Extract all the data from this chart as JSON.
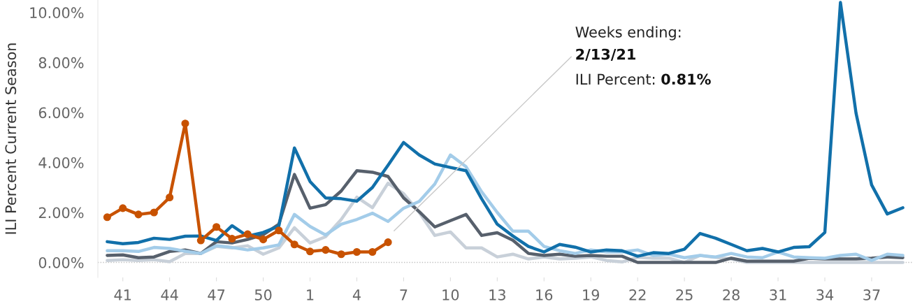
{
  "chart_data": {
    "type": "line",
    "ylabel": "ILI Percent Current Season",
    "categories": [
      null,
      "41",
      null,
      null,
      "44",
      null,
      null,
      "47",
      null,
      null,
      "50",
      null,
      null,
      "1",
      null,
      null,
      "4",
      null,
      null,
      "7",
      null,
      null,
      "10",
      null,
      null,
      "13",
      null,
      null,
      "16",
      null,
      null,
      "19",
      null,
      null,
      "22",
      null,
      null,
      "25",
      null,
      null,
      "28",
      null,
      null,
      "31",
      null,
      null,
      "34",
      null,
      null,
      "37",
      null,
      null
    ],
    "series": [
      {
        "color": "#c8d0d9",
        "values": [
          0.08,
          0.11,
          0.08,
          0.11,
          0.03,
          0.36,
          0.36,
          0.64,
          0.58,
          0.67,
          0.33,
          0.58,
          1.39,
          0.78,
          1.03,
          1.72,
          2.61,
          2.19,
          3.17,
          2.75,
          2.0,
          1.08,
          1.22,
          0.58,
          0.58,
          0.22,
          0.33,
          0.14,
          0.22,
          0.14,
          0.17,
          0.22,
          0.08,
          0.02,
          0.2,
          0.17,
          0.17,
          0,
          0.28,
          0.2,
          0.14,
          0,
          0,
          0,
          0,
          0,
          0,
          0,
          0,
          0,
          0,
          0
        ]
      },
      {
        "color": "#57606c",
        "values": [
          0.28,
          0.3,
          0.19,
          0.22,
          0.44,
          0.5,
          0.36,
          0.83,
          0.78,
          0.92,
          1.11,
          1.53,
          3.52,
          2.17,
          2.31,
          2.86,
          3.67,
          3.61,
          3.44,
          2.58,
          2.03,
          1.42,
          1.67,
          1.92,
          1.08,
          1.19,
          0.89,
          0.36,
          0.28,
          0.33,
          0.25,
          0.28,
          0.25,
          0.25,
          0,
          0,
          0,
          0,
          0,
          0,
          0.17,
          0.05,
          0.05,
          0.05,
          0.05,
          0.17,
          0.14,
          0.14,
          0.14,
          0.17,
          0.22,
          0.19
        ]
      },
      {
        "color": "#a3cce9",
        "values": [
          0.47,
          0.47,
          0.44,
          0.6,
          0.56,
          0.45,
          0.36,
          0.67,
          0.6,
          0.5,
          0.58,
          0.7,
          1.92,
          1.44,
          1.1,
          1.53,
          1.72,
          1.97,
          1.64,
          2.17,
          2.44,
          3.14,
          4.3,
          3.83,
          2.83,
          2.0,
          1.25,
          1.25,
          0.64,
          0.47,
          0.36,
          0.5,
          0.42,
          0.42,
          0.5,
          0.28,
          0.33,
          0.19,
          0.28,
          0.22,
          0.36,
          0.22,
          0.19,
          0.42,
          0.22,
          0.19,
          0.17,
          0.28,
          0.33,
          0.08,
          0.33,
          0.28
        ]
      },
      {
        "color": "#1170aa",
        "values": [
          0.83,
          0.75,
          0.8,
          0.97,
          0.92,
          1.05,
          1.06,
          0.88,
          1.47,
          1.05,
          1.2,
          1.45,
          4.58,
          3.24,
          2.58,
          2.55,
          2.45,
          3.0,
          3.89,
          4.8,
          4.3,
          3.94,
          3.8,
          3.67,
          2.55,
          1.53,
          1.06,
          0.64,
          0.42,
          0.72,
          0.61,
          0.42,
          0.5,
          0.47,
          0.25,
          0.39,
          0.36,
          0.53,
          1.16,
          0.97,
          0.72,
          0.47,
          0.56,
          0.42,
          0.6,
          0.63,
          1.2,
          10.4,
          5.97,
          3.1,
          1.94,
          2.19
        ]
      },
      {
        "color": "#c85200",
        "marker": "circle",
        "values": [
          1.81,
          2.17,
          1.92,
          2.0,
          2.6,
          5.56,
          0.88,
          1.42,
          0.95,
          1.13,
          0.92,
          1.28,
          0.72,
          0.44,
          0.5,
          0.33,
          0.42,
          0.42,
          0.81,
          null,
          null,
          null,
          null,
          null,
          null,
          null,
          null,
          null,
          null,
          null,
          null,
          null,
          null,
          null,
          null,
          null,
          null,
          null,
          null,
          null,
          null,
          null,
          null,
          null,
          null,
          null,
          null,
          null,
          null,
          null,
          null,
          null
        ]
      }
    ],
    "ylim": [
      -0.6,
      10.5
    ],
    "yticks": [
      {
        "value": 0,
        "label": "0.00%"
      },
      {
        "value": 2,
        "label": "2.00%"
      },
      {
        "value": 4,
        "label": "4.00%"
      },
      {
        "value": 6,
        "label": "6.00%"
      },
      {
        "value": 8,
        "label": "8.00%"
      },
      {
        "value": 10,
        "label": "10.00%"
      }
    ],
    "ref_lines": [
      {
        "axis": "y",
        "value": 0,
        "color": "#c0c0c0",
        "line_style": "dotted"
      }
    ],
    "annotations": [
      "Weeks ending:",
      "2/13/21",
      "ILI Percent: ",
      "0.81%"
    ],
    "grid": false,
    "legend": false
  }
}
